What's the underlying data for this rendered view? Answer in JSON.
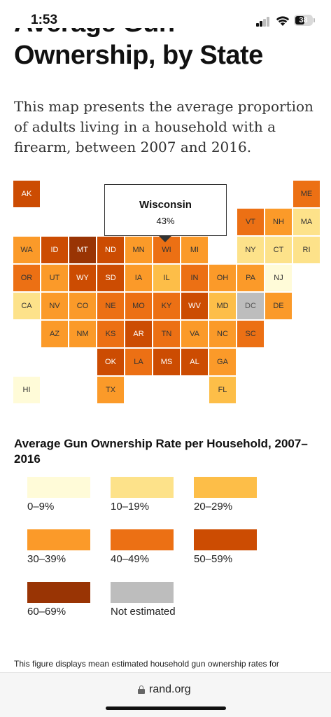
{
  "status_bar": {
    "time": "1:53",
    "battery_level": "38"
  },
  "page": {
    "title": "Ownership, by State",
    "intro": "This map presents the average proportion of adults living in a household with a firearm, between 2007 and 2016."
  },
  "colors": {
    "0-9": "#FFFBD8",
    "10-19": "#FDE28A",
    "20-29": "#FDBE48",
    "30-39": "#FB9A29",
    "40-49": "#EC7014",
    "50-59": "#CC4C02",
    "60-69": "#993404",
    "not_estimated": "#BDBDBD"
  },
  "map": {
    "states": [
      {
        "abbr": "AK",
        "bin": "50-59"
      },
      {
        "abbr": "ME",
        "bin": "40-49"
      },
      {
        "abbr": "VT",
        "bin": "40-49"
      },
      {
        "abbr": "NH",
        "bin": "30-39"
      },
      {
        "abbr": "MA",
        "bin": "10-19"
      },
      {
        "abbr": "WA",
        "bin": "30-39"
      },
      {
        "abbr": "ID",
        "bin": "50-59"
      },
      {
        "abbr": "MT",
        "bin": "60-69"
      },
      {
        "abbr": "ND",
        "bin": "50-59"
      },
      {
        "abbr": "MN",
        "bin": "30-39"
      },
      {
        "abbr": "WI",
        "bin": "40-49"
      },
      {
        "abbr": "MI",
        "bin": "30-39"
      },
      {
        "abbr": "NY",
        "bin": "10-19"
      },
      {
        "abbr": "CT",
        "bin": "10-19"
      },
      {
        "abbr": "RI",
        "bin": "10-19"
      },
      {
        "abbr": "OR",
        "bin": "40-49"
      },
      {
        "abbr": "UT",
        "bin": "30-39"
      },
      {
        "abbr": "WY",
        "bin": "50-59"
      },
      {
        "abbr": "SD",
        "bin": "50-59"
      },
      {
        "abbr": "IA",
        "bin": "30-39"
      },
      {
        "abbr": "IL",
        "bin": "20-29"
      },
      {
        "abbr": "IN",
        "bin": "40-49"
      },
      {
        "abbr": "OH",
        "bin": "30-39"
      },
      {
        "abbr": "PA",
        "bin": "30-39"
      },
      {
        "abbr": "NJ",
        "bin": "0-9"
      },
      {
        "abbr": "CA",
        "bin": "10-19"
      },
      {
        "abbr": "NV",
        "bin": "30-39"
      },
      {
        "abbr": "CO",
        "bin": "30-39"
      },
      {
        "abbr": "NE",
        "bin": "40-49"
      },
      {
        "abbr": "MO",
        "bin": "40-49"
      },
      {
        "abbr": "KY",
        "bin": "40-49"
      },
      {
        "abbr": "WV",
        "bin": "50-59"
      },
      {
        "abbr": "MD",
        "bin": "20-29"
      },
      {
        "abbr": "DC",
        "bin": "not_estimated"
      },
      {
        "abbr": "DE",
        "bin": "30-39"
      },
      {
        "abbr": "AZ",
        "bin": "30-39"
      },
      {
        "abbr": "NM",
        "bin": "30-39"
      },
      {
        "abbr": "KS",
        "bin": "40-49"
      },
      {
        "abbr": "AR",
        "bin": "50-59"
      },
      {
        "abbr": "TN",
        "bin": "40-49"
      },
      {
        "abbr": "VA",
        "bin": "30-39"
      },
      {
        "abbr": "NC",
        "bin": "30-39"
      },
      {
        "abbr": "SC",
        "bin": "40-49"
      },
      {
        "abbr": "OK",
        "bin": "50-59"
      },
      {
        "abbr": "LA",
        "bin": "40-49"
      },
      {
        "abbr": "MS",
        "bin": "50-59"
      },
      {
        "abbr": "AL",
        "bin": "50-59"
      },
      {
        "abbr": "GA",
        "bin": "30-39"
      },
      {
        "abbr": "HI",
        "bin": "0-9"
      },
      {
        "abbr": "TX",
        "bin": "30-39"
      },
      {
        "abbr": "FL",
        "bin": "20-29"
      }
    ],
    "tooltip": {
      "name": "Wisconsin",
      "value": "43%"
    }
  },
  "legend": {
    "title": "Average Gun Ownership Rate per Household, 2007–2016",
    "items": [
      {
        "label": "0–9%",
        "bin": "0-9"
      },
      {
        "label": "10–19%",
        "bin": "10-19"
      },
      {
        "label": "20–29%",
        "bin": "20-29"
      },
      {
        "label": "30–39%",
        "bin": "30-39"
      },
      {
        "label": "40–49%",
        "bin": "40-49"
      },
      {
        "label": "50–59%",
        "bin": "50-59"
      },
      {
        "label": "60–69%",
        "bin": "60-69"
      },
      {
        "label": "Not estimated",
        "bin": "not_estimated"
      }
    ]
  },
  "caption": "This figure displays mean estimated household gun ownership rates for",
  "browser": {
    "url": "rand.org"
  }
}
